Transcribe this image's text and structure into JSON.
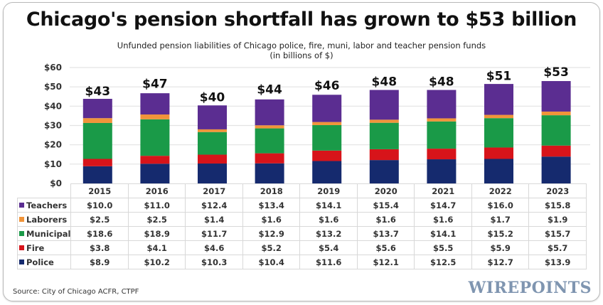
{
  "chart_data": {
    "type": "bar",
    "stacked": true,
    "title": "Chicago's pension shortfall has grown to $53 billion",
    "subtitle": "Unfunded pension liabilities of Chicago police, fire, muni, labor and teacher pension funds",
    "units_note": "(in billions of $)",
    "xlabel": "",
    "ylabel": "",
    "ylim": [
      0,
      60
    ],
    "yticks": [
      0,
      10,
      20,
      30,
      40,
      50,
      60
    ],
    "ytick_labels": [
      "$0",
      "$10",
      "$20",
      "$30",
      "$40",
      "$50",
      "$60"
    ],
    "grid": true,
    "legend": "table-below",
    "categories": [
      "2015",
      "2016",
      "2017",
      "2018",
      "2019",
      "2020",
      "2021",
      "2022",
      "2023"
    ],
    "totals": [
      43,
      47,
      40,
      44,
      46,
      48,
      48,
      51,
      53
    ],
    "total_labels": [
      "$43",
      "$47",
      "$40",
      "$44",
      "$46",
      "$48",
      "$48",
      "$51",
      "$53"
    ],
    "series": [
      {
        "name": "Police",
        "color": "#152a6e",
        "values": [
          8.9,
          10.2,
          10.3,
          10.4,
          11.6,
          12.1,
          12.5,
          12.7,
          13.9
        ],
        "labels": [
          "$8.9",
          "$10.2",
          "$10.3",
          "$10.4",
          "$11.6",
          "$12.1",
          "$12.5",
          "$12.7",
          "$13.9"
        ]
      },
      {
        "name": "Fire",
        "color": "#d7141a",
        "values": [
          3.8,
          4.1,
          4.6,
          5.2,
          5.4,
          5.6,
          5.5,
          5.9,
          5.7
        ],
        "labels": [
          "$3.8",
          "$4.1",
          "$4.6",
          "$5.2",
          "$5.4",
          "$5.6",
          "$5.5",
          "$5.9",
          "$5.7"
        ]
      },
      {
        "name": "Municipal",
        "color": "#1a9a48",
        "values": [
          18.6,
          18.9,
          11.7,
          12.9,
          13.2,
          13.7,
          14.1,
          15.2,
          15.7
        ],
        "labels": [
          "$18.6",
          "$18.9",
          "$11.7",
          "$12.9",
          "$13.2",
          "$13.7",
          "$14.1",
          "$15.2",
          "$15.7"
        ]
      },
      {
        "name": "Laborers",
        "color": "#f0943a",
        "values": [
          2.5,
          2.5,
          1.4,
          1.6,
          1.6,
          1.6,
          1.6,
          1.7,
          1.9
        ],
        "labels": [
          "$2.5",
          "$2.5",
          "$1.4",
          "$1.6",
          "$1.6",
          "$1.6",
          "$1.6",
          "$1.7",
          "$1.9"
        ]
      },
      {
        "name": "Teachers",
        "color": "#5b2d91",
        "values": [
          10.0,
          11.0,
          12.4,
          13.4,
          14.1,
          15.4,
          14.7,
          16.0,
          15.8
        ],
        "labels": [
          "$10.0",
          "$11.0",
          "$12.4",
          "$13.4",
          "$14.1",
          "$15.4",
          "$14.7",
          "$16.0",
          "$15.8"
        ]
      }
    ],
    "table_row_order": [
      "Teachers",
      "Laborers",
      "Municipal",
      "Fire",
      "Police"
    ]
  },
  "footer": {
    "source": "Source: City of Chicago ACFR, CTPF",
    "brand": "WIREPOINTS"
  }
}
